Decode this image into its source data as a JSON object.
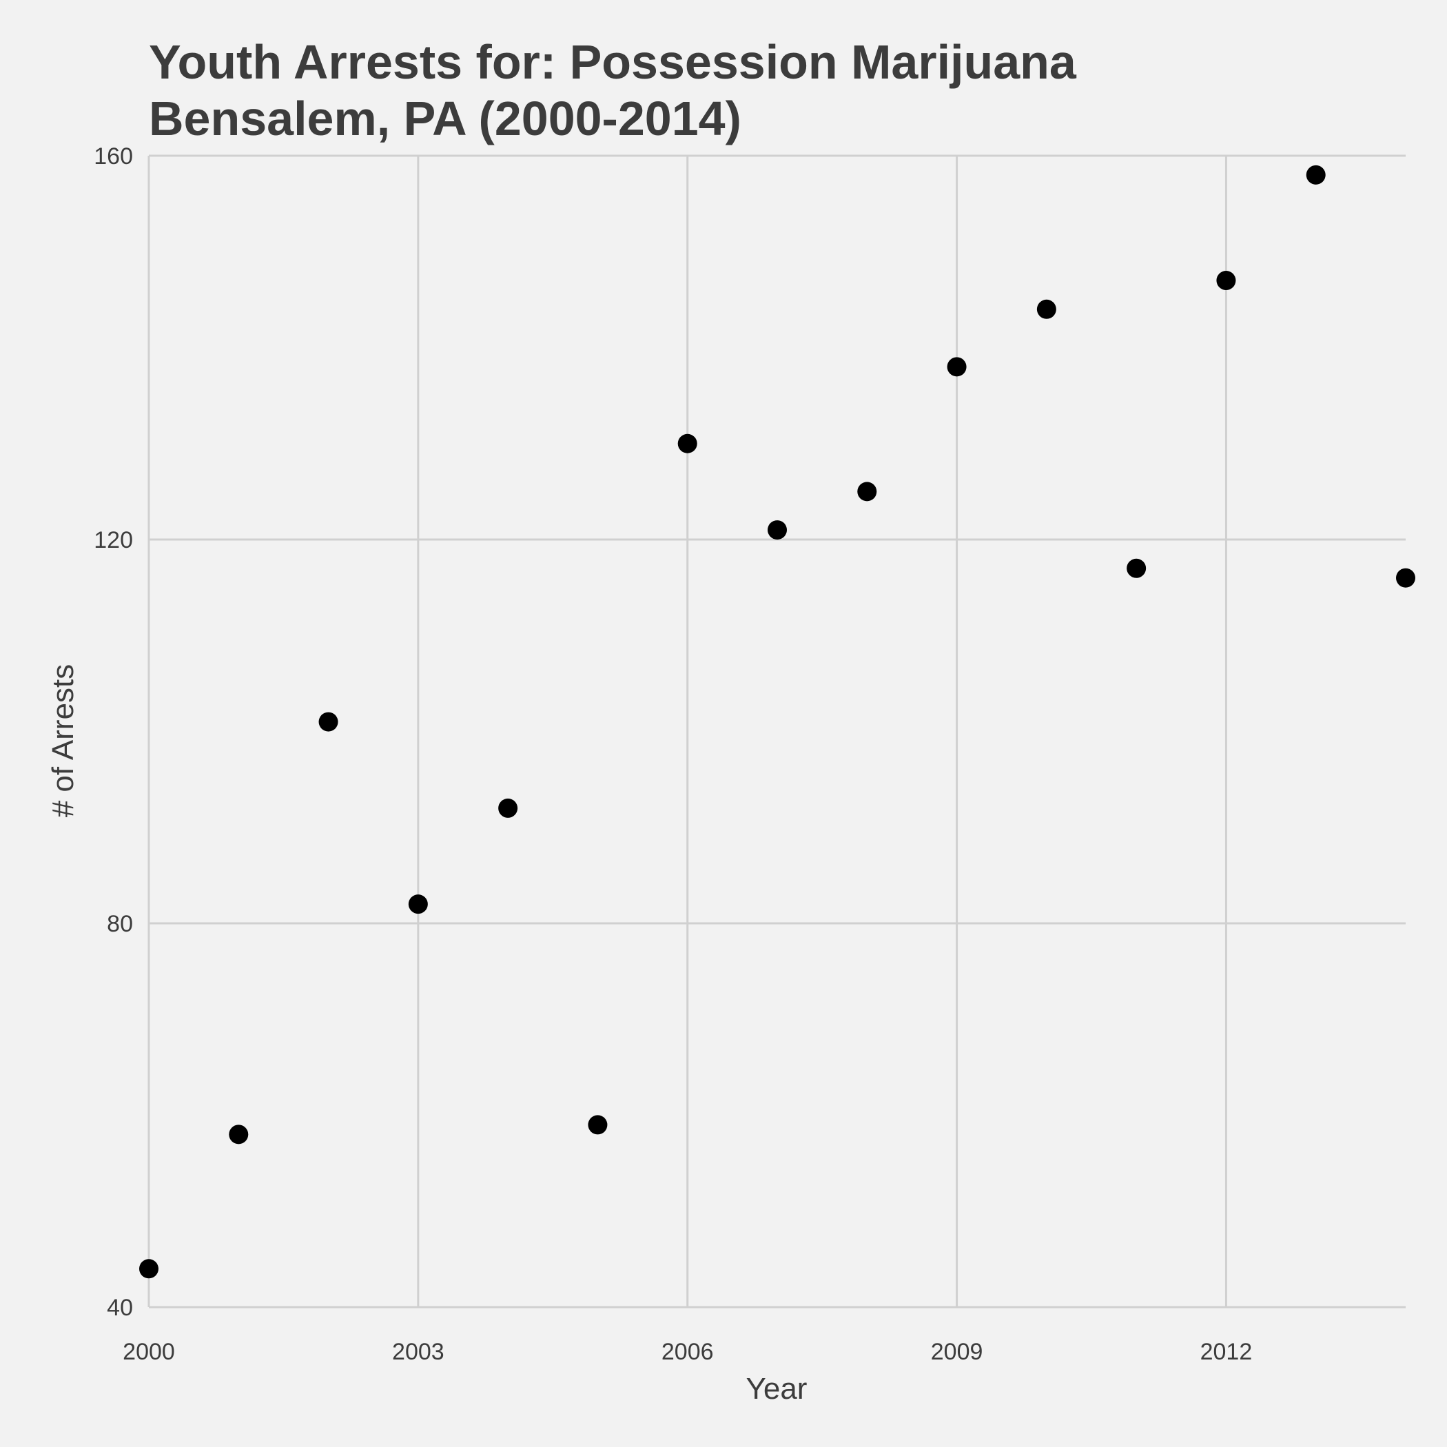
{
  "chart_data": {
    "type": "scatter",
    "title_lines": [
      "Youth Arrests for: Possession  Marijuana",
      "Bensalem, PA (2000-2014)"
    ],
    "xlabel": "Year",
    "ylabel": "# of Arrests",
    "xlim": [
      2000,
      2014
    ],
    "ylim": [
      40,
      160
    ],
    "x_ticks": [
      2000,
      2003,
      2006,
      2009,
      2012
    ],
    "y_ticks": [
      40,
      80,
      120,
      160
    ],
    "grid": true,
    "point_color": "#000000",
    "points": [
      {
        "x": 2000,
        "y": 44
      },
      {
        "x": 2001,
        "y": 58
      },
      {
        "x": 2002,
        "y": 101
      },
      {
        "x": 2003,
        "y": 82
      },
      {
        "x": 2004,
        "y": 92
      },
      {
        "x": 2005,
        "y": 59
      },
      {
        "x": 2006,
        "y": 130
      },
      {
        "x": 2007,
        "y": 121
      },
      {
        "x": 2008,
        "y": 125
      },
      {
        "x": 2009,
        "y": 138
      },
      {
        "x": 2010,
        "y": 144
      },
      {
        "x": 2011,
        "y": 117
      },
      {
        "x": 2012,
        "y": 147
      },
      {
        "x": 2013,
        "y": 158
      },
      {
        "x": 2014,
        "y": 116
      }
    ]
  }
}
